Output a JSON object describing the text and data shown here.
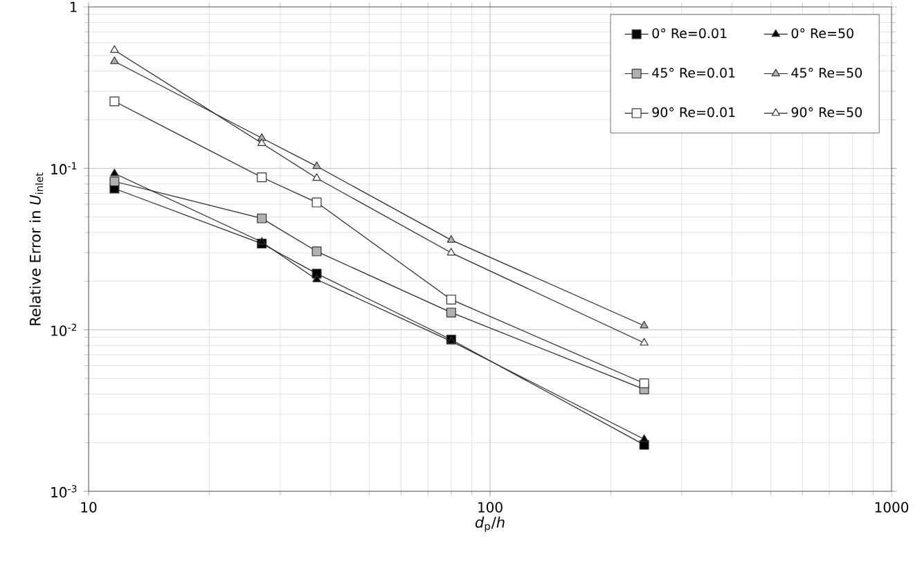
{
  "chart_data": {
    "type": "line",
    "xlabel": "*d*$_{p}$/*h*",
    "ylabel": "Relative Error in *U*$_{inlet}$",
    "x": [
      11.6,
      27,
      37,
      80,
      242
    ],
    "series": [
      {
        "name": "0° Re=0.01",
        "color": "#000000",
        "marker": "square",
        "values": [
          0.075,
          0.0342,
          0.0223,
          0.0087,
          0.00194
        ]
      },
      {
        "name": "0° Re=50",
        "color": "#000000",
        "marker": "triangle",
        "values": [
          0.093,
          0.035,
          0.0205,
          0.0085,
          0.0021
        ]
      },
      {
        "name": "45° Re=0.01",
        "color": "#b0b0b0",
        "marker": "square",
        "values": [
          0.083,
          0.049,
          0.0306,
          0.0128,
          0.00428
        ]
      },
      {
        "name": "45° Re=50",
        "color": "#b0b0b0",
        "marker": "triangle",
        "values": [
          0.46,
          0.154,
          0.103,
          0.036,
          0.0106
        ]
      },
      {
        "name": "90° Re=0.01",
        "color": "#ffffff",
        "marker": "square",
        "values": [
          0.26,
          0.088,
          0.0615,
          0.0154,
          0.00466
        ]
      },
      {
        "name": "90° Re=50",
        "color": "#ffffff",
        "marker": "triangle",
        "values": [
          0.54,
          0.143,
          0.087,
          0.03,
          0.0083
        ]
      }
    ],
    "xlim": [
      10,
      1000
    ],
    "ylim": [
      0.001,
      1
    ],
    "xticks": [
      10,
      100,
      1000
    ],
    "yticks": [
      {
        "value": 0.001,
        "label": "10$^{-3}$"
      },
      {
        "value": 0.01,
        "label": "10$^{-2}$"
      },
      {
        "value": 0.1,
        "label": "10$^{-1}$"
      },
      1
    ],
    "log": "xy",
    "grid": true,
    "legend": "top right",
    "line_style": "solid"
  }
}
